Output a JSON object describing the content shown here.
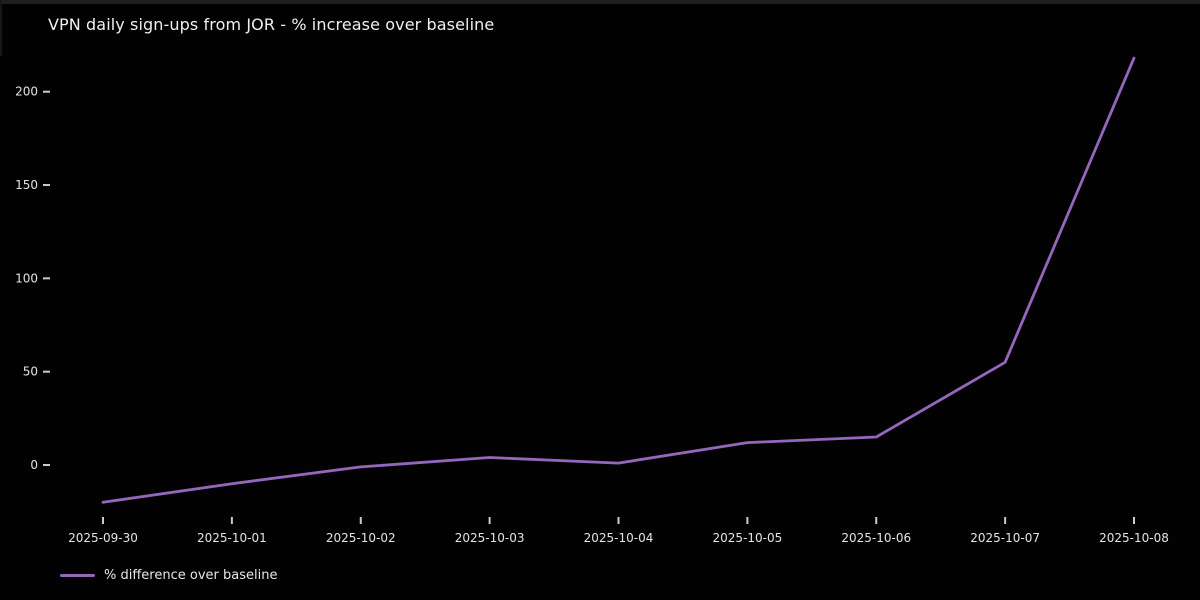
{
  "chart": {
    "title": "VPN daily sign-ups from JOR - % increase over baseline",
    "legend": {
      "label": "% difference over baseline"
    }
  },
  "colors": {
    "background": "#020202",
    "line": "#9467bd",
    "tick_text": "#e4e4e4",
    "tick_mark": "#cccccc",
    "title_text": "#f0f0f0"
  },
  "chart_data": {
    "type": "line",
    "title": "VPN daily sign-ups from JOR - % increase over baseline",
    "x": [
      "2025-09-30",
      "2025-10-01",
      "2025-10-02",
      "2025-10-03",
      "2025-10-04",
      "2025-10-05",
      "2025-10-06",
      "2025-10-07",
      "2025-10-08"
    ],
    "series": [
      {
        "name": "% difference over baseline",
        "values": [
          -20,
          -10,
          -1,
          4,
          1,
          12,
          15,
          55,
          218
        ]
      }
    ],
    "xlabel": "",
    "ylabel": "",
    "yticks": [
      0,
      50,
      100,
      150,
      200
    ],
    "ylim": [
      -28,
      225
    ],
    "grid": false,
    "legend_position": "lower left",
    "theme": "dark"
  }
}
